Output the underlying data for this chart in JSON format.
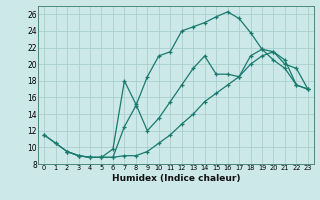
{
  "xlabel": "Humidex (Indice chaleur)",
  "background_color": "#cce8e8",
  "line_color": "#1a7a6e",
  "grid_color": "#aacfcf",
  "xlim": [
    -0.5,
    23.5
  ],
  "ylim": [
    8,
    27
  ],
  "xticks": [
    0,
    1,
    2,
    3,
    4,
    5,
    6,
    7,
    8,
    9,
    10,
    11,
    12,
    13,
    14,
    15,
    16,
    17,
    18,
    19,
    20,
    21,
    22,
    23
  ],
  "yticks": [
    8,
    10,
    12,
    14,
    16,
    18,
    20,
    22,
    24,
    26
  ],
  "curve1_x": [
    0,
    1,
    2,
    3,
    4,
    5,
    6,
    7,
    8,
    9,
    10,
    11,
    12,
    13,
    14,
    15,
    16,
    17,
    18,
    19,
    20,
    21,
    22,
    23
  ],
  "curve1_y": [
    11.5,
    10.5,
    9.5,
    9.0,
    8.8,
    8.8,
    8.8,
    12.5,
    15.0,
    18.5,
    21.0,
    21.5,
    24.0,
    24.5,
    25.0,
    25.7,
    26.3,
    25.5,
    23.8,
    21.8,
    20.5,
    19.5,
    17.5,
    17.0
  ],
  "curve2_x": [
    0,
    1,
    2,
    3,
    4,
    5,
    6,
    7,
    8,
    9,
    10,
    11,
    12,
    13,
    14,
    15,
    16,
    17,
    18,
    19,
    20,
    21,
    22,
    23
  ],
  "curve2_y": [
    11.5,
    10.5,
    9.5,
    9.0,
    8.8,
    8.8,
    9.8,
    18.0,
    15.2,
    12.0,
    13.5,
    15.5,
    17.5,
    19.5,
    21.0,
    18.8,
    18.8,
    18.5,
    21.0,
    21.8,
    21.5,
    20.0,
    19.5,
    17.0
  ],
  "curve3_x": [
    2,
    3,
    4,
    5,
    6,
    7,
    8,
    9,
    10,
    11,
    12,
    13,
    14,
    15,
    16,
    17,
    18,
    19,
    20,
    21,
    22,
    23
  ],
  "curve3_y": [
    9.5,
    9.0,
    8.8,
    8.8,
    8.8,
    9.0,
    9.0,
    9.5,
    10.5,
    11.5,
    12.8,
    14.0,
    15.5,
    16.5,
    17.5,
    18.5,
    20.0,
    21.0,
    21.5,
    20.5,
    17.5,
    17.0
  ]
}
